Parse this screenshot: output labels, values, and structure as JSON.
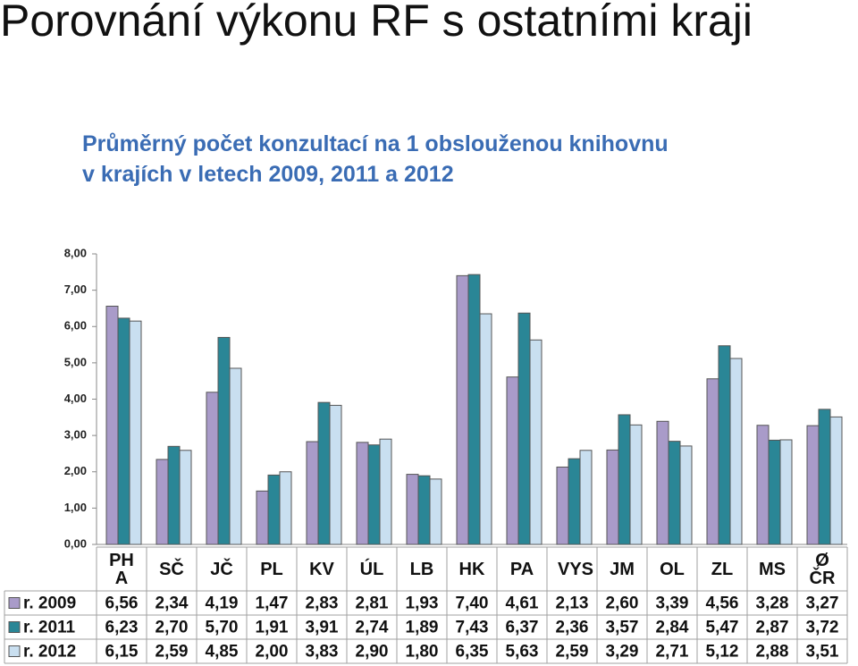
{
  "chart_data": {
    "type": "bar",
    "title": "Porovnání výkonu RF s ostatními kraji",
    "subtitle": [
      "Průměrný počet konzultací na 1 obslouženou knihovnu",
      "v krajích v letech 2009, 2011 a 2012"
    ],
    "categories": [
      "PH A",
      "SČ",
      "JČ",
      "PL",
      "KV",
      "ÚL",
      "LB",
      "HK",
      "PA",
      "VYS",
      "JM",
      "OL",
      "ZL",
      "MS",
      "Ø ČR"
    ],
    "series": [
      {
        "name": "r. 2009",
        "color": "#a99bc9",
        "values": [
          6.56,
          2.34,
          4.19,
          1.47,
          2.83,
          2.81,
          1.93,
          7.4,
          4.61,
          2.13,
          2.6,
          3.39,
          4.56,
          3.28,
          3.27
        ],
        "value_labels": [
          "6,56",
          "2,34",
          "4,19",
          "1,47",
          "2,83",
          "2,81",
          "1,93",
          "7,40",
          "4,61",
          "2,13",
          "2,60",
          "3,39",
          "4,56",
          "3,28",
          "3,27"
        ]
      },
      {
        "name": "r. 2011",
        "color": "#2a8696",
        "values": [
          6.23,
          2.7,
          5.7,
          1.91,
          3.91,
          2.74,
          1.89,
          7.43,
          6.37,
          2.36,
          3.57,
          2.84,
          5.47,
          2.87,
          3.72
        ],
        "value_labels": [
          "6,23",
          "2,70",
          "5,70",
          "1,91",
          "3,91",
          "2,74",
          "1,89",
          "7,43",
          "6,37",
          "2,36",
          "3,57",
          "2,84",
          "5,47",
          "2,87",
          "3,72"
        ]
      },
      {
        "name": "r. 2012",
        "color": "#c9dff0",
        "values": [
          6.15,
          2.59,
          4.85,
          2.0,
          3.83,
          2.9,
          1.8,
          6.35,
          5.63,
          2.59,
          3.29,
          2.71,
          5.12,
          2.88,
          3.51
        ],
        "value_labels": [
          "6,15",
          "2,59",
          "4,85",
          "2,00",
          "3,83",
          "2,90",
          "1,80",
          "6,35",
          "5,63",
          "2,59",
          "3,29",
          "2,71",
          "5,12",
          "2,88",
          "3,51"
        ]
      }
    ],
    "ylim": [
      0,
      8
    ],
    "yticks": [
      {
        "value": 0,
        "label": "0,00"
      },
      {
        "value": 1,
        "label": "1,00"
      },
      {
        "value": 2,
        "label": "2,00"
      },
      {
        "value": 3,
        "label": "3,00"
      },
      {
        "value": 4,
        "label": "4,00"
      },
      {
        "value": 5,
        "label": "5,00"
      },
      {
        "value": 6,
        "label": "6,00"
      },
      {
        "value": 7,
        "label": "7,00"
      },
      {
        "value": 8,
        "label": "8,00"
      }
    ],
    "grid": false
  }
}
